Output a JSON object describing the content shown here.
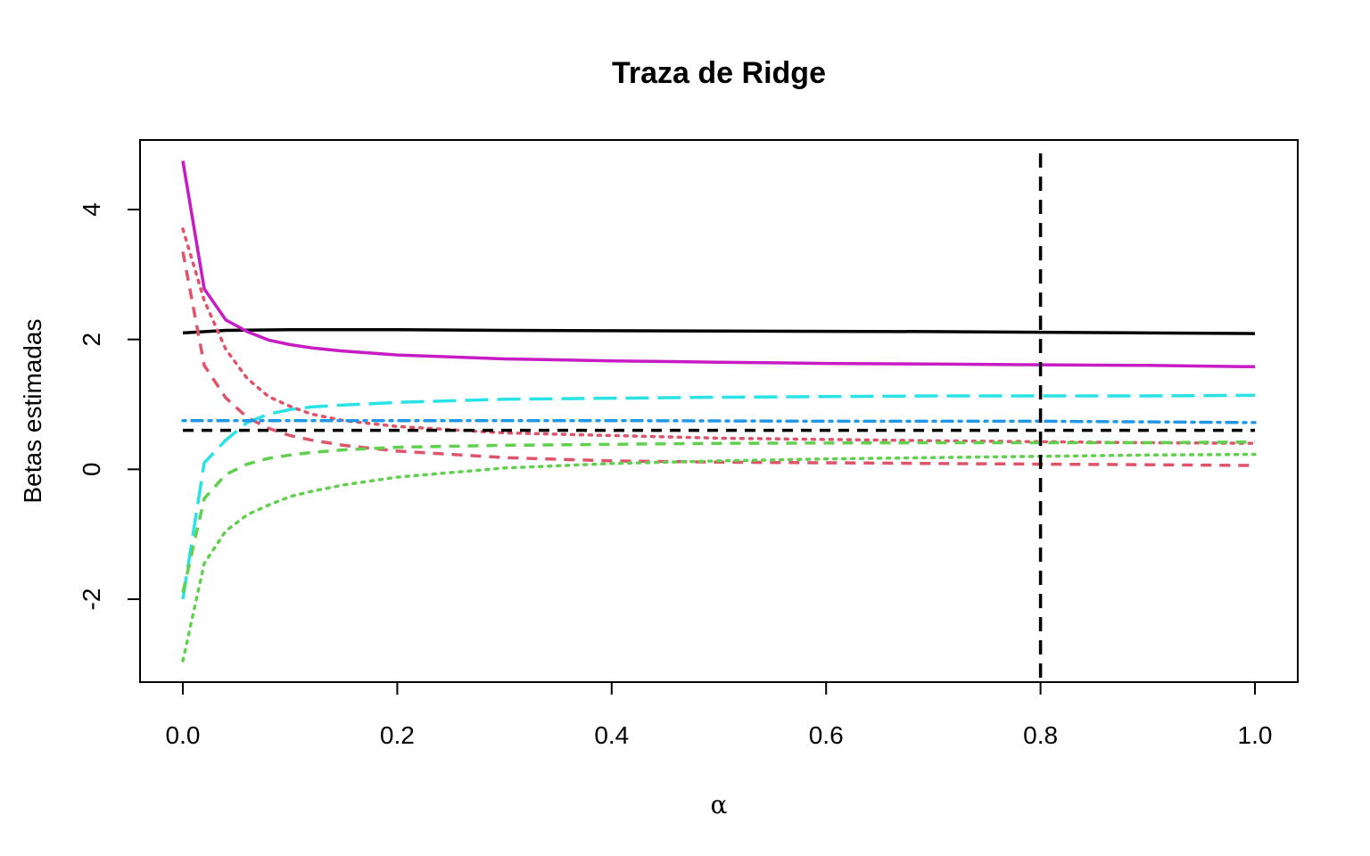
{
  "chart_data": {
    "type": "line",
    "title": "Traza de Ridge",
    "xlabel": "α",
    "ylabel": "Betas estimadas",
    "xlim": [
      0,
      1
    ],
    "ylim": [
      -3.2,
      5.1
    ],
    "x_ticks": [
      {
        "value": 0,
        "label": "0.0"
      },
      {
        "value": 0.2,
        "label": "0.2"
      },
      {
        "value": 0.4,
        "label": "0.4"
      },
      {
        "value": 0.6,
        "label": "0.6"
      },
      {
        "value": 0.8,
        "label": "0.8"
      },
      {
        "value": 1.0,
        "label": "1.0"
      }
    ],
    "y_ticks": [
      {
        "value": -2,
        "label": "-2"
      },
      {
        "value": 0,
        "label": "0"
      },
      {
        "value": 2,
        "label": "2"
      },
      {
        "value": 4,
        "label": "4"
      }
    ],
    "grid": false,
    "legend": false,
    "vline": {
      "x": 0.8,
      "color": "#000000",
      "dash": "dashed"
    },
    "series": [
      {
        "color": "#000000",
        "dash": "solid",
        "x": [
          0,
          0.04,
          0.1,
          0.2,
          0.3,
          0.5,
          0.7,
          0.9,
          1.0
        ],
        "y": [
          2.1,
          2.14,
          2.15,
          2.15,
          2.14,
          2.13,
          2.12,
          2.1,
          2.09
        ]
      },
      {
        "color": "#C71BC3",
        "dash": "solid",
        "x": [
          0,
          0.02,
          0.04,
          0.06,
          0.08,
          0.1,
          0.12,
          0.15,
          0.2,
          0.3,
          0.4,
          0.5,
          0.6,
          0.7,
          0.8,
          0.9,
          1.0
        ],
        "y": [
          4.75,
          2.78,
          2.3,
          2.12,
          1.99,
          1.92,
          1.87,
          1.82,
          1.76,
          1.7,
          1.67,
          1.65,
          1.63,
          1.62,
          1.61,
          1.6,
          1.58
        ]
      },
      {
        "color": "#DF536B",
        "dash": "dotted",
        "x": [
          0,
          0.02,
          0.04,
          0.06,
          0.08,
          0.1,
          0.12,
          0.15,
          0.2,
          0.3,
          0.5,
          0.7,
          0.9,
          1.0
        ],
        "y": [
          3.7,
          2.6,
          1.85,
          1.4,
          1.12,
          0.97,
          0.85,
          0.75,
          0.66,
          0.56,
          0.48,
          0.44,
          0.41,
          0.4
        ]
      },
      {
        "color": "#DF536B",
        "dash": "dashed",
        "x": [
          0,
          0.02,
          0.04,
          0.06,
          0.08,
          0.1,
          0.12,
          0.15,
          0.2,
          0.3,
          0.4,
          0.5,
          0.6,
          0.7,
          0.8,
          0.9,
          1.0
        ],
        "y": [
          3.35,
          1.6,
          1.1,
          0.8,
          0.63,
          0.52,
          0.45,
          0.37,
          0.28,
          0.18,
          0.13,
          0.11,
          0.1,
          0.09,
          0.08,
          0.07,
          0.06
        ]
      },
      {
        "color": "#28E2E5",
        "dash": "longdash",
        "x": [
          0,
          0.02,
          0.04,
          0.06,
          0.08,
          0.1,
          0.12,
          0.15,
          0.2,
          0.3,
          0.5,
          0.7,
          0.9,
          1.0
        ],
        "y": [
          -2.0,
          0.1,
          0.45,
          0.72,
          0.85,
          0.92,
          0.96,
          0.99,
          1.03,
          1.08,
          1.11,
          1.13,
          1.13,
          1.14
        ]
      },
      {
        "color": "#2297E6",
        "dash": "dotdash",
        "x": [
          0,
          0.2,
          0.4,
          0.6,
          0.8,
          1.0
        ],
        "y": [
          0.75,
          0.75,
          0.75,
          0.74,
          0.74,
          0.72
        ]
      },
      {
        "color": "#000000",
        "dash": "dashed",
        "x": [
          0,
          0.2,
          0.4,
          0.6,
          0.8,
          1.0
        ],
        "y": [
          0.6,
          0.6,
          0.6,
          0.6,
          0.6,
          0.6
        ]
      },
      {
        "color": "#61D04F",
        "dash": "dashed",
        "x": [
          0,
          0.02,
          0.04,
          0.06,
          0.08,
          0.1,
          0.12,
          0.15,
          0.2,
          0.3,
          0.5,
          0.7,
          0.9,
          1.0
        ],
        "y": [
          -1.9,
          -0.45,
          -0.08,
          0.08,
          0.17,
          0.22,
          0.26,
          0.3,
          0.34,
          0.37,
          0.4,
          0.41,
          0.41,
          0.42
        ]
      },
      {
        "color": "#61D04F",
        "dash": "dotted",
        "x": [
          0,
          0.02,
          0.04,
          0.06,
          0.08,
          0.1,
          0.12,
          0.15,
          0.2,
          0.3,
          0.4,
          0.5,
          0.6,
          0.7,
          0.8,
          0.9,
          1.0
        ],
        "y": [
          -2.95,
          -1.45,
          -0.95,
          -0.7,
          -0.55,
          -0.42,
          -0.34,
          -0.24,
          -0.12,
          0.02,
          0.09,
          0.13,
          0.16,
          0.18,
          0.2,
          0.22,
          0.23
        ]
      }
    ]
  }
}
